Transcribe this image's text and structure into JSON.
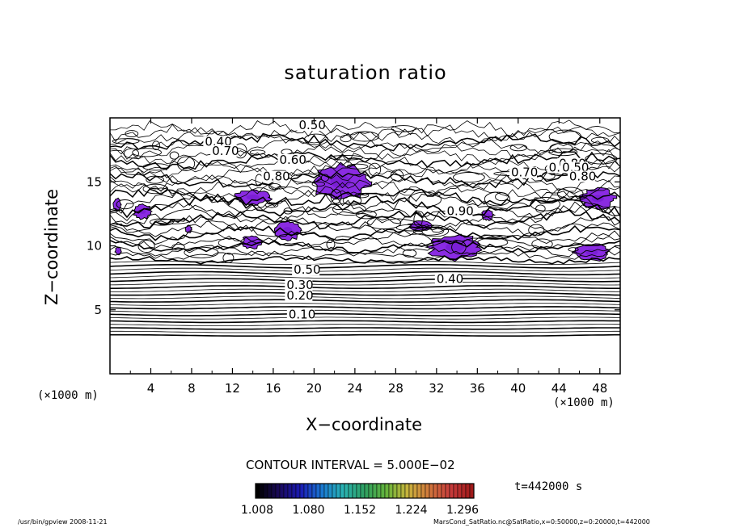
{
  "chart_data": {
    "type": "contour",
    "title": "saturation ratio",
    "xlabel": "X−coordinate",
    "ylabel": "Z−coordinate",
    "x_unit": "(×1000 m)",
    "y_unit": "(×1000 m)",
    "xlim": [
      0,
      50
    ],
    "ylim": [
      0,
      20
    ],
    "x_ticks": [
      4,
      8,
      12,
      16,
      20,
      24,
      28,
      32,
      36,
      40,
      44,
      48
    ],
    "y_ticks": [
      5,
      10,
      15
    ],
    "contour_interval_text": "CONTOUR INTERVAL = 5.000E−02",
    "contour_labels": [
      {
        "text": "0.10",
        "x": 17.5,
        "y": 4.5
      },
      {
        "text": "0.20",
        "x": 17.3,
        "y": 6.0
      },
      {
        "text": "0.30",
        "x": 17.3,
        "y": 6.8
      },
      {
        "text": "0.40",
        "x": 32.0,
        "y": 7.3
      },
      {
        "text": "0.50",
        "x": 18.0,
        "y": 8.0
      },
      {
        "text": "0.40",
        "x": 9.3,
        "y": 18.0
      },
      {
        "text": "0.70",
        "x": 10.0,
        "y": 17.3
      },
      {
        "text": "0.60",
        "x": 16.6,
        "y": 16.6
      },
      {
        "text": "0.50",
        "x": 18.5,
        "y": 19.3
      },
      {
        "text": "0.80",
        "x": 15.0,
        "y": 15.3
      },
      {
        "text": "0.90",
        "x": 33.0,
        "y": 12.6
      },
      {
        "text": "0.70",
        "x": 39.3,
        "y": 15.6
      },
      {
        "text": "0.60",
        "x": 43.0,
        "y": 16.0
      },
      {
        "text": "0.80",
        "x": 44.0,
        "y": 16.3
      },
      {
        "text": "0.50",
        "x": 44.3,
        "y": 16.0
      },
      {
        "text": "0.80",
        "x": 45.0,
        "y": 15.3
      }
    ],
    "supersaturated_regions": [
      {
        "x": 22.6,
        "y": 15.0,
        "rx": 2.8,
        "ry": 1.4,
        "value": 1.05
      },
      {
        "x": 14.0,
        "y": 13.8,
        "rx": 1.8,
        "ry": 0.6,
        "value": 1.03
      },
      {
        "x": 33.8,
        "y": 9.9,
        "rx": 2.6,
        "ry": 1.0,
        "value": 1.06
      },
      {
        "x": 17.4,
        "y": 11.2,
        "rx": 1.3,
        "ry": 0.8,
        "value": 1.03
      },
      {
        "x": 13.9,
        "y": 10.3,
        "rx": 1.0,
        "ry": 0.5,
        "value": 1.02
      },
      {
        "x": 47.2,
        "y": 9.5,
        "rx": 1.7,
        "ry": 0.7,
        "value": 1.03
      },
      {
        "x": 47.8,
        "y": 13.7,
        "rx": 1.7,
        "ry": 0.8,
        "value": 1.03
      },
      {
        "x": 3.2,
        "y": 12.7,
        "rx": 0.9,
        "ry": 0.6,
        "value": 1.02
      },
      {
        "x": 30.5,
        "y": 11.6,
        "rx": 1.2,
        "ry": 0.4,
        "value": 1.02
      },
      {
        "x": 37.0,
        "y": 12.4,
        "rx": 0.6,
        "ry": 0.4,
        "value": 1.02
      },
      {
        "x": 0.7,
        "y": 13.2,
        "rx": 0.4,
        "ry": 0.5,
        "value": 1.02
      },
      {
        "x": 0.8,
        "y": 9.6,
        "rx": 0.3,
        "ry": 0.3,
        "value": 1.02
      },
      {
        "x": 7.7,
        "y": 11.3,
        "rx": 0.3,
        "ry": 0.3,
        "value": 1.02
      }
    ],
    "colorbar": {
      "tick_labels": [
        "1.008",
        "1.080",
        "1.152",
        "1.224",
        "1.296"
      ],
      "range": [
        1.0,
        1.3
      ],
      "colors": [
        "#000000",
        "#1a0a5a",
        "#1a1ab4",
        "#1a78d2",
        "#2ab4b4",
        "#2ea060",
        "#64b43c",
        "#c8b43c",
        "#d2783c",
        "#c83c3c",
        "#a01a1a"
      ]
    },
    "time_label": "t=442000 s"
  },
  "footer": {
    "left": "/usr/bin/gpview   2008-11-21",
    "right": "MarsCond_SatRatio.nc@SatRatio,x=0:50000,z=0:20000,t=442000"
  }
}
